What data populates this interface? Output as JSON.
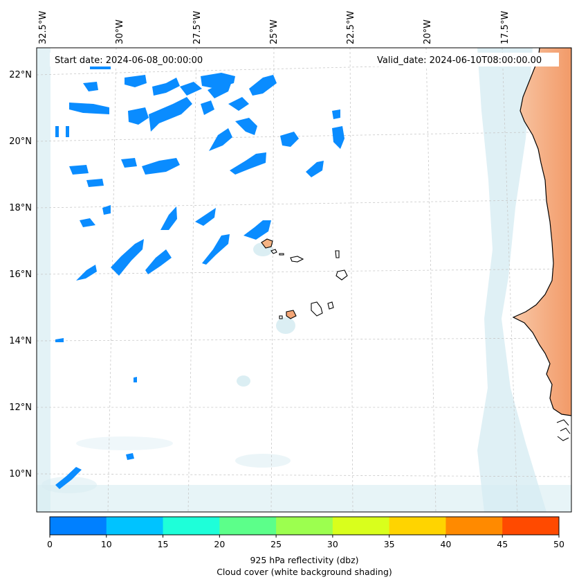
{
  "header": {
    "start_label": "Start date: 2024-06-08_00:00:00",
    "valid_label": "Valid_date: 2024-06-10T08:00:00.00"
  },
  "longitude_labels": [
    "32.5°W",
    "30°W",
    "27.5°W",
    "25°W",
    "22.5°W",
    "20°W",
    "17.5°W"
  ],
  "latitude_labels": [
    "22°N",
    "20°N",
    "18°N",
    "16°N",
    "14°N",
    "12°N",
    "10°N"
  ],
  "colorbar": {
    "ticks": [
      "0",
      "10",
      "15",
      "20",
      "25",
      "30",
      "35",
      "40",
      "45",
      "50"
    ],
    "colors": [
      "#0080ff",
      "#00c3ff",
      "#1effd9",
      "#5cff8a",
      "#9cff4f",
      "#d9ff1c",
      "#ffd400",
      "#ff8a00",
      "#ff4a00"
    ],
    "label_line1": "925 hPa reflectivity (dbz)",
    "label_line2": "Cloud cover (white background shading)"
  },
  "colors": {
    "reflectivity_low": "#0a8cff",
    "land": "#f4a677",
    "cloud_shading": "#cfe8ef"
  }
}
